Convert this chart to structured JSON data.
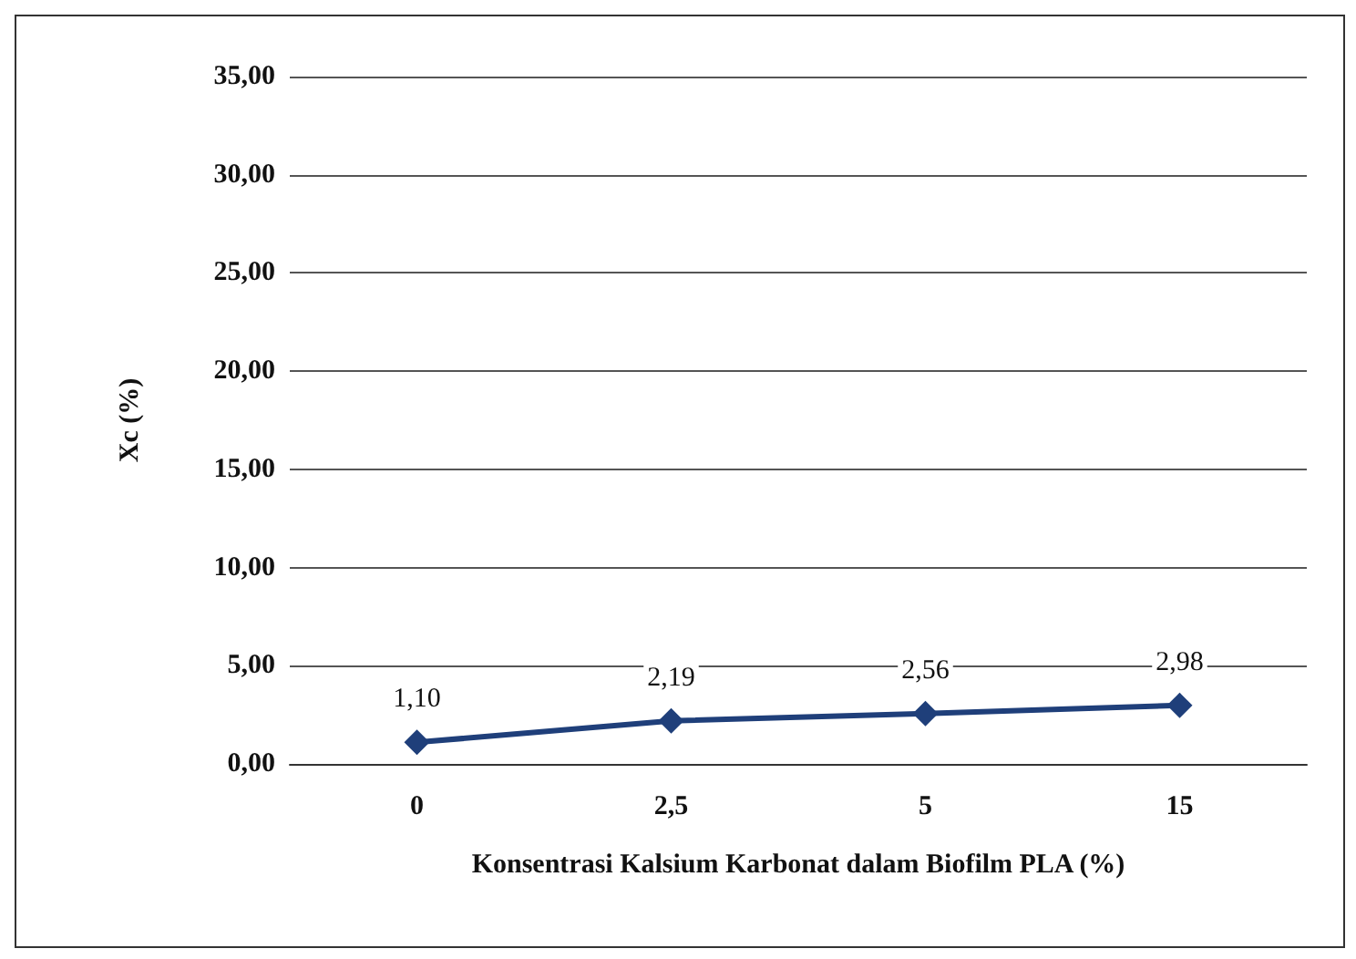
{
  "chart_data": {
    "type": "line",
    "xlabel": "Konsentrasi Kalsium Karbonat dalam Biofilm PLA (%)",
    "ylabel": "Xc (%)",
    "categories": [
      "0",
      "2,5",
      "5",
      "15"
    ],
    "series": [
      {
        "color": "#1f3f7a",
        "values": [
          1.1,
          2.19,
          2.56,
          2.98
        ],
        "value_labels": [
          "1,10",
          "2,19",
          "2,56",
          "2,98"
        ]
      }
    ],
    "ylim": [
      0,
      35
    ],
    "yticks": [
      {
        "value": 0,
        "label": "0,00"
      },
      {
        "value": 5,
        "label": "5,00"
      },
      {
        "value": 10,
        "label": "10,00"
      },
      {
        "value": 15,
        "label": "15,00"
      },
      {
        "value": 20,
        "label": "20,00"
      },
      {
        "value": 25,
        "label": "25,00"
      },
      {
        "value": 30,
        "label": "30,00"
      },
      {
        "value": 35,
        "label": "35,00"
      }
    ],
    "grid": "y",
    "marker": "diamond",
    "line_style": "solid"
  }
}
